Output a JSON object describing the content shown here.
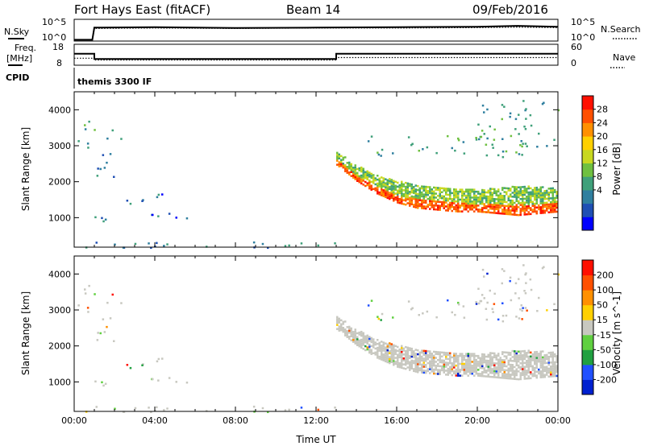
{
  "header": {
    "station": "Fort Hays East (fitACF)",
    "beam": "Beam 14",
    "date": "09/Feb/2016"
  },
  "status_labels": {
    "nsky": "N.Sky",
    "nsky_ticks": [
      "10^5",
      "10^0"
    ],
    "nsearch": "N.Search",
    "nsearch_ticks": [
      "10^5",
      "10^0"
    ],
    "freq": "Freq.",
    "freq_unit": "[MHz]",
    "freq_ticks": [
      "18",
      "8"
    ],
    "nave": "Nave",
    "nave_ticks": [
      "60",
      "0"
    ],
    "cpid": "CPID",
    "cpid_value": "themis 3300 IF"
  },
  "chart_data": [
    {
      "type": "line",
      "panel": "noise",
      "x": [
        0.0,
        0.9,
        1.0,
        4,
        8,
        12,
        16,
        20,
        22,
        24
      ],
      "series": [
        {
          "name": "N.Sky",
          "values": [
            0.3,
            0.3,
            3.1,
            3.2,
            3.0,
            3.1,
            3.2,
            3.3,
            3.5,
            3.3
          ]
        },
        {
          "name": "N.Search",
          "values": [
            0.3,
            0.3,
            2.9,
            3.0,
            2.9,
            3.0,
            3.0,
            3.1,
            3.2,
            3.1
          ]
        }
      ]
    },
    {
      "type": "line",
      "panel": "frequency",
      "x": [
        0.0,
        1.0,
        1.0,
        13.0,
        13.0,
        24.0
      ],
      "series": [
        {
          "name": "Freq.",
          "values": [
            13.5,
            13.5,
            11.0,
            11.0,
            13.5,
            13.5
          ]
        },
        {
          "name": "Nave",
          "values": [
            20,
            20,
            15,
            15,
            22,
            22
          ]
        }
      ]
    },
    {
      "type": "heatmap",
      "panel": "power",
      "xlabel": "",
      "ylabel": "Slant Range [km]",
      "xlim": [
        0,
        24
      ],
      "ylim": [
        180,
        4500
      ],
      "yticks": [
        "1000",
        "2000",
        "3000",
        "4000"
      ],
      "colorbar": {
        "label": "Power [dB]",
        "ticks": [
          "28",
          "24",
          "20",
          "16",
          "12",
          "8",
          "4"
        ],
        "colors": [
          "#0000ff",
          "#1f4fb4",
          "#2f7f9f",
          "#3fa07a",
          "#6fc040",
          "#c8d820",
          "#ffd000",
          "#ff9000",
          "#ff5000",
          "#ff1000"
        ]
      },
      "echo_regions": [
        {
          "t0": 0.0,
          "t1": 1.1,
          "r0": 2900,
          "r1": 3700,
          "value": 10
        },
        {
          "t0": 0.8,
          "t1": 2.0,
          "r0": 2100,
          "r1": 2800,
          "value": 8
        },
        {
          "t0": 1.6,
          "t1": 2.4,
          "r0": 3100,
          "r1": 3600,
          "value": 8
        },
        {
          "t0": 0.9,
          "t1": 1.8,
          "r0": 850,
          "r1": 1200,
          "value": 8
        },
        {
          "t0": 3.5,
          "t1": 6.0,
          "r0": 950,
          "r1": 1150,
          "value": 6
        },
        {
          "t0": 2.5,
          "t1": 4.5,
          "r0": 1300,
          "r1": 1800,
          "value": 6
        },
        {
          "t0": 0.5,
          "t1": 13.0,
          "r0": 180,
          "r1": 350,
          "value": 8
        },
        {
          "t0": 14.5,
          "t1": 22.5,
          "r0": 2700,
          "r1": 3300,
          "value": 10
        },
        {
          "t0": 20.0,
          "t1": 24.0,
          "r0": 3000,
          "r1": 4300,
          "value": 10
        }
      ],
      "echo_band": {
        "t": [
          13.0,
          14.0,
          15.0,
          16.0,
          17.0,
          18.0,
          19.0,
          20.0,
          21.0,
          22.0,
          23.0,
          24.0
        ],
        "r_top": [
          2850,
          2500,
          2200,
          2050,
          1950,
          1900,
          1850,
          1800,
          1850,
          1900,
          1900,
          1850
        ],
        "r_bot": [
          2500,
          2050,
          1700,
          1450,
          1300,
          1250,
          1200,
          1200,
          1150,
          1100,
          1150,
          1200
        ],
        "core_value": 24,
        "edge_value": 14
      }
    },
    {
      "type": "heatmap",
      "panel": "velocity",
      "xlabel": "Time UT",
      "ylabel": "Slant Range [km]",
      "xlim": [
        0,
        24
      ],
      "ylim": [
        180,
        4500
      ],
      "xticks": [
        "00:00",
        "04:00",
        "08:00",
        "12:00",
        "16:00",
        "20:00",
        "00:00"
      ],
      "yticks": [
        "1000",
        "2000",
        "3000",
        "4000"
      ],
      "colorbar": {
        "label": "Velocity [m s^-1]",
        "ticks": [
          "200",
          "100",
          "50",
          "15",
          "-15",
          "-50",
          "-100",
          "-200"
        ],
        "colors": [
          "#0020d0",
          "#2050ff",
          "#20a040",
          "#60d040",
          "#c8c8c0",
          "#ffd000",
          "#ff9000",
          "#ff5000",
          "#ff1000"
        ]
      },
      "ground_scatter_color": "#c8c8c0"
    }
  ]
}
